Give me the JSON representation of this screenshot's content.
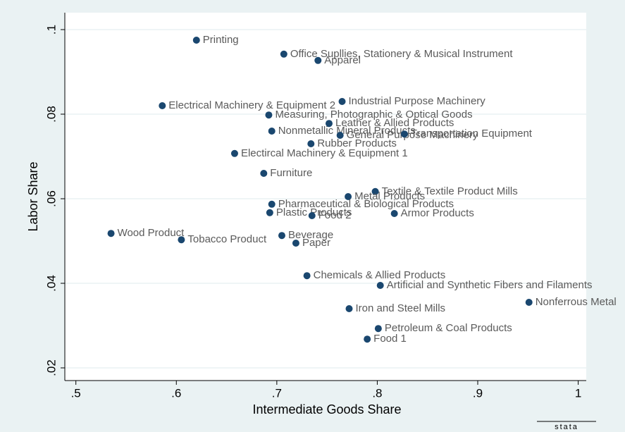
{
  "chart_data": {
    "type": "scatter",
    "x_label": "Intermediate Goods Share",
    "y_label": "Labor Share",
    "xlim": [
      0.489,
      1.008
    ],
    "ylim": [
      0.017,
      0.104
    ],
    "xticks": [
      {
        "value": 0.5,
        "label": ".5"
      },
      {
        "value": 0.6,
        "label": ".6"
      },
      {
        "value": 0.7,
        "label": ".7"
      },
      {
        "value": 0.8,
        "label": ".8"
      },
      {
        "value": 0.9,
        "label": ".9"
      },
      1
    ],
    "yticks": [
      {
        "value": 0.02,
        "label": ".02"
      },
      {
        "value": 0.04,
        "label": ".04"
      },
      {
        "value": 0.06,
        "label": ".06"
      },
      {
        "value": 0.08,
        "label": ".08"
      },
      {
        "value": 0.1,
        "label": ".1"
      }
    ],
    "grid": true,
    "color": "#1a476f",
    "labels": [
      "Printing",
      "Office Supllies, Stationery & Musical Instrument",
      "Apparel",
      "Industrial Purpose Machinery",
      "Electrical Machinery & Equipment 2",
      "Measuring, Photographic & Optical Goods",
      "Leather & Allied Products",
      "Nonmetallic Mineral Products",
      "General Purpose Machinery",
      "Transportation Equipment",
      "Rubber Products",
      "Electircal Machinery & Equipment 1",
      "Furniture",
      "Textile & Textile Product Mills",
      "Metal Products",
      "Pharmaceutical & Biological Products",
      "Plastic Products",
      "Armor Products",
      "Food 2",
      "Wood Product",
      "Beverage",
      "Tobacco Product",
      "Paper",
      "Chemicals & Allied Products",
      "Artificial and Synthetic Fibers and Filaments",
      "Nonferrous Metal",
      "Iron and Steel Mills",
      "Petroleum & Coal Products",
      "Food 1"
    ],
    "x": [
      0.62,
      0.707,
      0.741,
      0.765,
      0.586,
      0.692,
      0.752,
      0.695,
      0.763,
      0.827,
      0.734,
      0.658,
      0.687,
      0.798,
      0.771,
      0.695,
      0.693,
      0.817,
      0.735,
      0.535,
      0.705,
      0.605,
      0.719,
      0.73,
      0.803,
      0.951,
      0.772,
      0.801,
      0.79
    ],
    "values": [
      0.0975,
      0.0942,
      0.0927,
      0.083,
      0.082,
      0.0798,
      0.0778,
      0.076,
      0.075,
      0.0753,
      0.073,
      0.0707,
      0.066,
      0.0617,
      0.0605,
      0.0587,
      0.0567,
      0.0565,
      0.056,
      0.0518,
      0.0513,
      0.0503,
      0.0495,
      0.0418,
      0.0395,
      0.0355,
      0.034,
      0.0293,
      0.0268
    ],
    "logo": "stata"
  }
}
